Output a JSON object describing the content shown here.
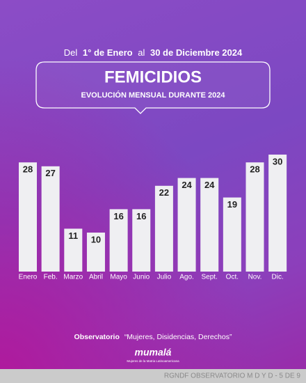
{
  "header": {
    "date_range": [
      "Del",
      "1° de Enero",
      "al",
      "30 de Diciembre 2024"
    ]
  },
  "chart_data": {
    "type": "bar",
    "title": "FEMICIDIOS",
    "subtitle": "EVOLUCIÓN MENSUAL DURANTE 2024",
    "categories": [
      "Enero",
      "Feb.",
      "Marzo",
      "Abril",
      "Mayo",
      "Junio",
      "Julio",
      "Ago.",
      "Sept.",
      "Oct.",
      "Nov.",
      "Dic."
    ],
    "values": [
      28,
      27,
      11,
      10,
      16,
      16,
      22,
      24,
      24,
      19,
      28,
      30
    ],
    "color": "#efeff2"
  },
  "footer": {
    "observatory": [
      "Observatorio",
      "“Mujeres, Disidencias, Derechos”"
    ],
    "logo": "mumalá",
    "logo_tagline": "Mujeres de la Matria Latinoamericana",
    "page_note": "RGNDF OBSERVATORIO M D Y D - 5 DE 9"
  }
}
